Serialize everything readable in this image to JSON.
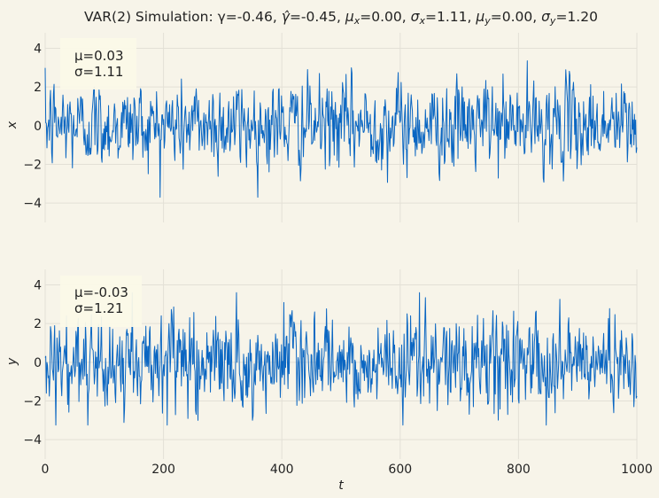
{
  "chart_data": {
    "type": "line",
    "title": "VAR(2) Simulation: γ=-0.46, γ̂=-0.45, μₓ=0.00, σₓ=1.11, μᵧ=0.00, σᵧ=1.20",
    "title_parts": {
      "prefix": "VAR(2) Simulation: γ=-0.46, ",
      "gammahat": "=-0.45, ",
      "mux": "=0.00, ",
      "sigmax": "=1.11, ",
      "muy": "=0.00, ",
      "sigmay": "=1.20"
    },
    "xlabel": "t",
    "xlim": [
      0,
      1000
    ],
    "xticks": [
      "0",
      "200",
      "400",
      "600",
      "800",
      "1000"
    ],
    "grid": true,
    "line_color": "#0a66c2",
    "panels": [
      {
        "name": "x",
        "ylabel": "x",
        "ylim": [
          -5,
          4.8
        ],
        "yticks": [
          "4",
          "2",
          "0",
          "−2",
          "−4"
        ],
        "stats": [
          "μ=0.03",
          "σ=1.11"
        ],
        "sample_mean": 0.03,
        "sample_std": 1.11,
        "observed_range": [
          -3.7,
          3.35
        ],
        "n_points": 1000
      },
      {
        "name": "y",
        "ylabel": "y",
        "ylim": [
          -5,
          4.8
        ],
        "yticks": [
          "4",
          "2",
          "0",
          "−2",
          "−4"
        ],
        "stats": [
          "μ=-0.03",
          "σ=1.21"
        ],
        "sample_mean": -0.03,
        "sample_std": 1.21,
        "observed_range": [
          -3.25,
          3.6
        ],
        "n_points": 1000
      }
    ]
  }
}
